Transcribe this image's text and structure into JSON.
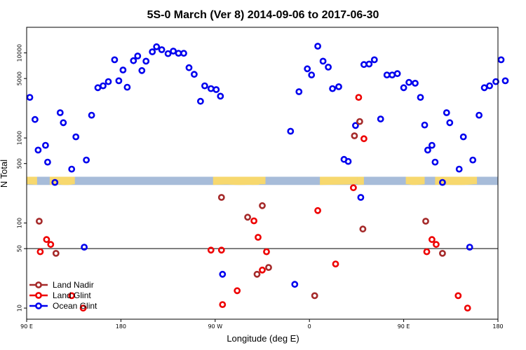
{
  "chart_data": {
    "type": "scatter",
    "title": "5S-0 March (Ver 8)   2014-09-06 to 2017-06-30",
    "xlabel": "Longitude (deg E)",
    "ylabel": "N Total",
    "xlim": [
      90,
      540
    ],
    "ylim": [
      7.4,
      20000
    ],
    "yscale": "log",
    "x_ticks": [
      {
        "value": 90,
        "label": "90 E"
      },
      {
        "value": 180,
        "label": "180"
      },
      {
        "value": 270,
        "label": "90 W"
      },
      {
        "value": 360,
        "label": "0"
      },
      {
        "value": 450,
        "label": "90 E"
      },
      {
        "value": 540,
        "label": "180"
      }
    ],
    "y_ticks": [
      {
        "value": 10,
        "label": "10"
      },
      {
        "value": 50,
        "label": "50"
      },
      {
        "value": 100,
        "label": "100"
      },
      {
        "value": 500,
        "label": "500"
      },
      {
        "value": 1000,
        "label": "1000"
      },
      {
        "value": 5000,
        "label": "5000"
      },
      {
        "value": 10000,
        "label": "10000"
      }
    ],
    "reference_line_y": 50,
    "map_strip_y_range": [
      280,
      350
    ],
    "map_strip_colors": {
      "ocean": "#a7bcd9",
      "land": "#f7d86e"
    },
    "legend_position": "bottom-left",
    "series": [
      {
        "name": "Ocean Glint",
        "color": "#0000ee",
        "points": [
          [
            93,
            3000
          ],
          [
            98,
            1650
          ],
          [
            101,
            720
          ],
          [
            108,
            820
          ],
          [
            110,
            520
          ],
          [
            117,
            300
          ],
          [
            122,
            1980
          ],
          [
            125,
            1510
          ],
          [
            133,
            430
          ],
          [
            137,
            1030
          ],
          [
            145,
            52
          ],
          [
            147,
            550
          ],
          [
            152,
            1850
          ],
          [
            158,
            3900
          ],
          [
            163,
            4100
          ],
          [
            168,
            4600
          ],
          [
            174,
            8300
          ],
          [
            178,
            4700
          ],
          [
            182,
            6300
          ],
          [
            186,
            3950
          ],
          [
            192,
            8100
          ],
          [
            196,
            9200
          ],
          [
            200,
            6200
          ],
          [
            204,
            8000
          ],
          [
            210,
            10300
          ],
          [
            214,
            11800
          ],
          [
            219,
            10900
          ],
          [
            225,
            9800
          ],
          [
            230,
            10500
          ],
          [
            235,
            9900
          ],
          [
            240,
            9900
          ],
          [
            245,
            6700
          ],
          [
            250,
            5600
          ],
          [
            256,
            2700
          ],
          [
            260,
            4100
          ],
          [
            266,
            3800
          ],
          [
            271,
            3700
          ],
          [
            275,
            3100
          ],
          [
            277,
            25
          ],
          [
            342,
            1200
          ],
          [
            346,
            19
          ],
          [
            350,
            3500
          ],
          [
            358,
            6500
          ],
          [
            362,
            5500
          ],
          [
            368,
            12000
          ],
          [
            373,
            8000
          ],
          [
            378,
            6800
          ],
          [
            382,
            3800
          ],
          [
            388,
            4000
          ],
          [
            393,
            560
          ],
          [
            397,
            530
          ],
          [
            404,
            1400
          ],
          [
            409,
            200
          ],
          [
            412,
            7300
          ],
          [
            417,
            7400
          ],
          [
            422,
            8300
          ],
          [
            428,
            1670
          ],
          [
            434,
            5500
          ],
          [
            439,
            5500
          ],
          [
            444,
            5700
          ],
          [
            450,
            3900
          ],
          [
            455,
            4500
          ],
          [
            461,
            4400
          ],
          [
            466,
            3000
          ],
          [
            470,
            1420
          ],
          [
            473,
            720
          ],
          [
            477,
            820
          ],
          [
            480,
            520
          ],
          [
            487,
            300
          ],
          [
            491,
            1980
          ],
          [
            494,
            1510
          ],
          [
            503,
            430
          ],
          [
            507,
            1030
          ],
          [
            513,
            52
          ],
          [
            516,
            550
          ],
          [
            522,
            1850
          ],
          [
            527,
            3900
          ],
          [
            532,
            4100
          ],
          [
            538,
            4600
          ],
          [
            543,
            8300
          ],
          [
            547,
            4700
          ]
        ]
      },
      {
        "name": "Land Glint",
        "color": "#ee0000",
        "points": [
          [
            103,
            46
          ],
          [
            109,
            64
          ],
          [
            113,
            56
          ],
          [
            133,
            14
          ],
          [
            144,
            10
          ],
          [
            266,
            48
          ],
          [
            276,
            48
          ],
          [
            277,
            11
          ],
          [
            291,
            16
          ],
          [
            307,
            106
          ],
          [
            311,
            68
          ],
          [
            315,
            28
          ],
          [
            319,
            46
          ],
          [
            368,
            140
          ],
          [
            385,
            33
          ],
          [
            402,
            260
          ],
          [
            407,
            3000
          ],
          [
            412,
            980
          ],
          [
            472,
            46
          ],
          [
            477,
            64
          ],
          [
            481,
            56
          ],
          [
            502,
            14
          ],
          [
            511,
            10
          ]
        ]
      },
      {
        "name": "Land Nadir",
        "color": "#a52a2a",
        "points": [
          [
            102,
            105
          ],
          [
            118,
            44
          ],
          [
            276,
            200
          ],
          [
            301,
            117
          ],
          [
            310,
            25
          ],
          [
            315,
            160
          ],
          [
            321,
            30
          ],
          [
            365,
            14
          ],
          [
            403,
            1060
          ],
          [
            408,
            1560
          ],
          [
            411,
            85
          ],
          [
            471,
            105
          ],
          [
            487,
            44
          ]
        ]
      }
    ]
  }
}
